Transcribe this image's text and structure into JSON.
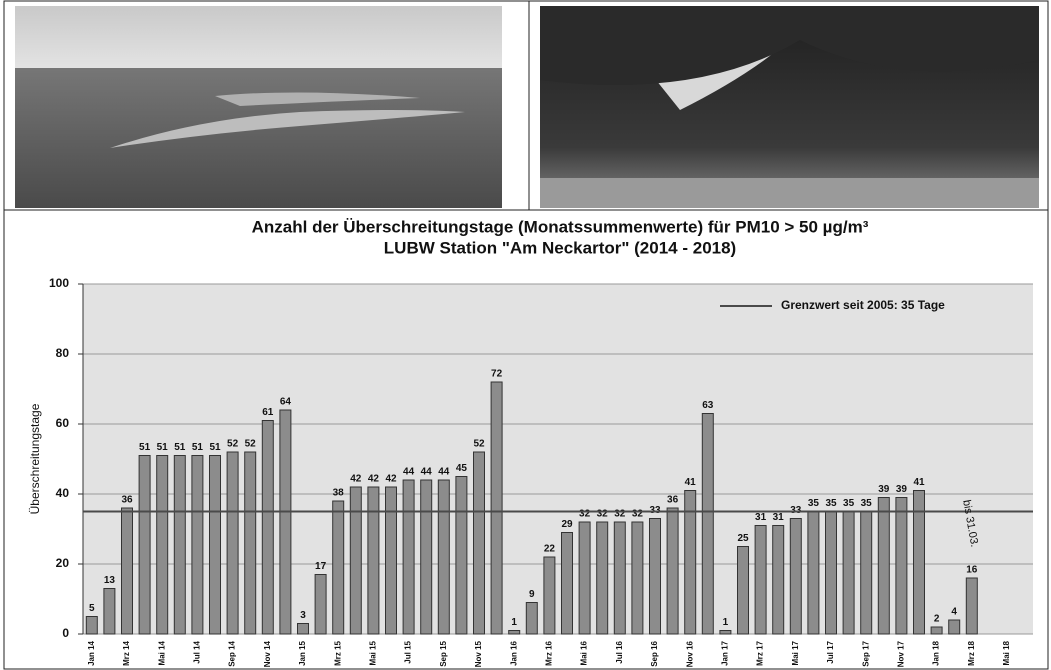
{
  "chart_data": {
    "type": "bar",
    "title": "Anzahl der Überschreitungstage (Monatssummenwerte) für PM10 > 50 µg/m³",
    "subtitle": "LUBW Station \"Am Neckartor\" (2014 - 2018)",
    "y_label": "Überschreitungstage",
    "categories": [
      "Jan 14",
      null,
      "Mrz 14",
      null,
      "Mai 14",
      null,
      "Jul 14",
      null,
      "Sep 14",
      null,
      "Nov 14",
      null,
      "Jan 15",
      null,
      "Mrz 15",
      null,
      "Mai 15",
      null,
      "Jul 15",
      null,
      "Sep 15",
      null,
      "Nov 15",
      null,
      "Jan 16",
      null,
      "Mrz 16",
      null,
      "Mai 16",
      null,
      "Jul 16",
      null,
      "Sep 16",
      null,
      "Nov 16",
      null,
      "Jan 17",
      null,
      "Mrz 17",
      null,
      "Mai 17",
      null,
      "Jul 17",
      null,
      "Sep 17",
      null,
      "Nov 17",
      null,
      "Jan 18",
      null,
      "Mrz 18",
      null,
      "Mai 18"
    ],
    "values": [
      5,
      13,
      36,
      51,
      51,
      51,
      51,
      51,
      52,
      52,
      61,
      64,
      3,
      17,
      38,
      42,
      42,
      42,
      44,
      44,
      44,
      45,
      52,
      72,
      1,
      9,
      22,
      29,
      32,
      32,
      32,
      32,
      33,
      36,
      41,
      63,
      1,
      25,
      31,
      31,
      33,
      35,
      35,
      35,
      35,
      39,
      39,
      41,
      2,
      4,
      16,
      null,
      null
    ],
    "color": "#8c8c8c",
    "ylim": [
      0,
      100
    ],
    "yticks": [
      0,
      20,
      40,
      60,
      80,
      100
    ],
    "grid": true,
    "reference_line": {
      "value": 35,
      "label": "Grenzwert seit 2005: 35 Tage",
      "color": "#4a4a4a"
    },
    "annotation": "bis 31.03."
  }
}
